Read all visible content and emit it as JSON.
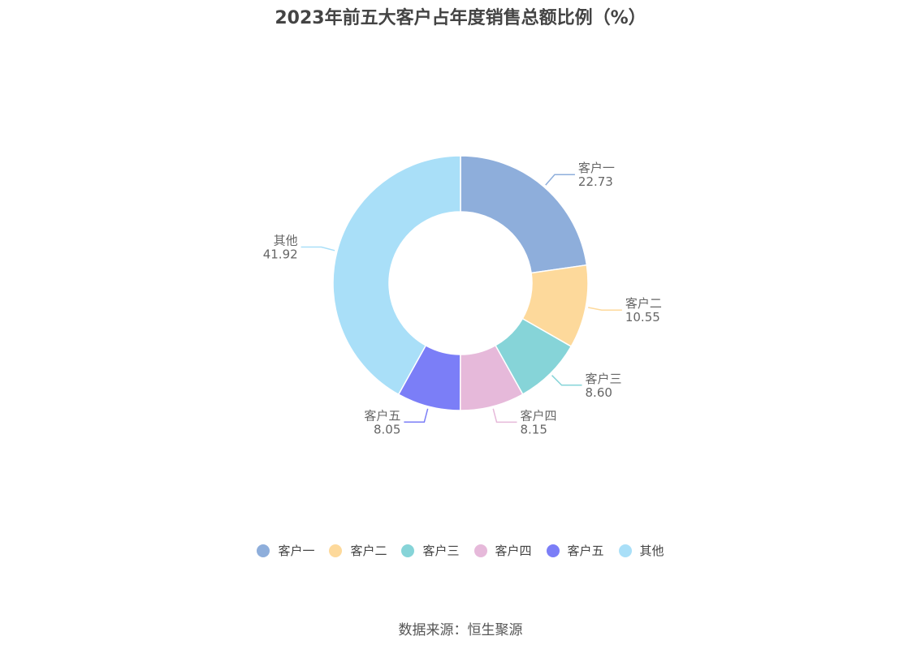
{
  "title": "2023年前五大客户占年度销售总额比例（%）",
  "source": "数据来源：恒生聚源",
  "chart_data": {
    "type": "pie",
    "variant": "donut",
    "title": "2023年前五大客户占年度销售总额比例（%）",
    "legend_position": "bottom",
    "slices": [
      {
        "label": "客户一",
        "value": 22.73,
        "value_text": "22.73",
        "color": "#8eaedb"
      },
      {
        "label": "客户二",
        "value": 10.55,
        "value_text": "10.55",
        "color": "#fdd99b"
      },
      {
        "label": "客户三",
        "value": 8.6,
        "value_text": "8.60",
        "color": "#86d4d8"
      },
      {
        "label": "客户四",
        "value": 8.15,
        "value_text": "8.15",
        "color": "#e6b9da"
      },
      {
        "label": "客户五",
        "value": 8.05,
        "value_text": "8.05",
        "color": "#7b7ef7"
      },
      {
        "label": "其他",
        "value": 41.92,
        "value_text": "41.92",
        "color": "#a9dff8"
      }
    ]
  }
}
